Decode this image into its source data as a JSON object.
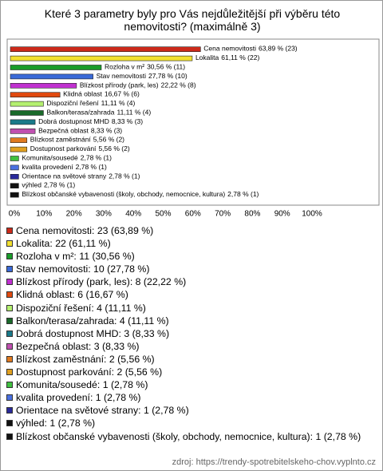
{
  "chart_data": {
    "type": "hbar",
    "title": "Které 3 parametry byly pro Vás nejdůležitější při výběru této nemovitosti? (maximálně 3)",
    "categories": [
      "Cena nemovitosti",
      "Lokalita",
      "Rozloha v m²",
      "Stav nemovitosti",
      "Blízkost přírody (park, les)",
      "Klidná oblast",
      "Dispoziční řešení",
      "Balkon/terasa/zahrada",
      "Dobrá dostupnost MHD",
      "Bezpečná oblast",
      "Blízkost zaměstnání",
      "Dostupnost parkování",
      "Komunita/sousedé",
      "kvalita provedení",
      "Orientace na světové strany",
      "výhled",
      "Blízkost občanské vybavenosti (školy, obchody, nemocnice, kultura)"
    ],
    "values": [
      63.89,
      61.11,
      30.56,
      27.78,
      22.22,
      16.67,
      11.11,
      11.11,
      8.33,
      8.33,
      5.56,
      5.56,
      2.78,
      2.78,
      2.78,
      2.78,
      2.78
    ],
    "value_labels": [
      "63,89 % (23)",
      "61,11 % (22)",
      "30,56 % (11)",
      "27,78 % (10)",
      "22,22 % (8)",
      "16,67 % (6)",
      "11,11 % (4)",
      "11,11 % (4)",
      "8,33 % (3)",
      "8,33 % (3)",
      "5,56 % (2)",
      "5,56 % (2)",
      "2,78 % (1)",
      "2,78 % (1)",
      "2,78 % (1)",
      "2,78 % (1)",
      "2,78 % (1)"
    ],
    "colors": [
      "#cc2a1a",
      "#f2e030",
      "#1a9c2a",
      "#3a6ad8",
      "#c030d0",
      "#e04a10",
      "#b4f070",
      "#1a6a2a",
      "#1a7a8a",
      "#c050b0",
      "#e07a20",
      "#e0a020",
      "#40c040",
      "#4a70e0",
      "#2a2a9a",
      "#111111",
      "#111111"
    ],
    "legend": [
      "Cena nemovitosti: 23 (63,89 %)",
      "Lokalita: 22 (61,11 %)",
      "Rozloha v m²: 11 (30,56 %)",
      "Stav nemovitosti: 10 (27,78 %)",
      "Blízkost přírody (park, les): 8 (22,22 %)",
      "Klidná oblast: 6 (16,67 %)",
      "Dispoziční řešení: 4 (11,11 %)",
      "Balkon/terasa/zahrada: 4 (11,11 %)",
      "Dobrá dostupnost MHD: 3 (8,33 %)",
      "Bezpečná oblast: 3 (8,33 %)",
      "Blízkost zaměstnání: 2 (5,56 %)",
      "Dostupnost parkování: 2 (5,56 %)",
      "Komunita/sousedé: 1 (2,78 %)",
      "kvalita provedení: 1 (2,78 %)",
      "Orientace na světové strany: 1 (2,78 %)",
      "výhled: 1 (2,78 %)",
      "Blízkost občanské vybavenosti (školy, obchody, nemocnice, kultura): 1 (2,78 %)"
    ],
    "xlim": [
      0,
      100
    ],
    "xticks": [
      {
        "value": 0,
        "label": "0%"
      },
      {
        "value": 10,
        "label": "10%"
      },
      {
        "value": 20,
        "label": "20%"
      },
      {
        "value": 30,
        "label": "30%"
      },
      {
        "value": 40,
        "label": "40%"
      },
      {
        "value": 50,
        "label": "50%"
      },
      {
        "value": 60,
        "label": "60%"
      },
      {
        "value": 70,
        "label": "70%"
      },
      {
        "value": 80,
        "label": "80%"
      },
      {
        "value": 90,
        "label": "90%"
      },
      {
        "value": 100,
        "label": "100%"
      }
    ],
    "source": "zdroj: https://trendy-spotrebitelskeho-chov.vyplnto.cz"
  }
}
